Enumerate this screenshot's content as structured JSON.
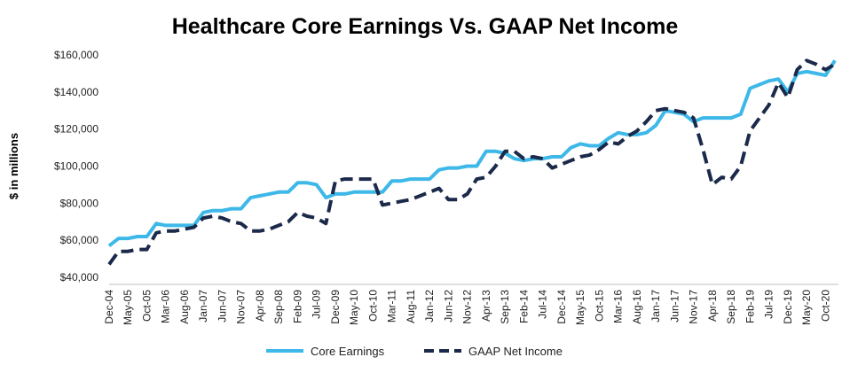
{
  "chart_data": {
    "type": "line",
    "title": "Healthcare Core Earnings Vs. GAAP Net Income",
    "xlabel": "",
    "ylabel": "$ in millions",
    "ylim": [
      40000,
      160000
    ],
    "yticks": [
      40000,
      60000,
      80000,
      100000,
      120000,
      140000,
      160000
    ],
    "ytick_labels": [
      "$40,000",
      "$60,000",
      "$80,000",
      "$100,000",
      "$120,000",
      "$140,000",
      "$160,000"
    ],
    "x": [
      "Dec-04",
      "Mar-05",
      "May-05",
      "Aug-05",
      "Oct-05",
      "Jan-06",
      "Mar-06",
      "Jun-06",
      "Aug-06",
      "Nov-06",
      "Jan-07",
      "Apr-07",
      "Jun-07",
      "Sep-07",
      "Nov-07",
      "Feb-08",
      "Apr-08",
      "Jul-08",
      "Sep-08",
      "Dec-08",
      "Feb-09",
      "May-09",
      "Jul-09",
      "Oct-09",
      "Dec-09",
      "Mar-10",
      "May-10",
      "Aug-10",
      "Oct-10",
      "Jan-11",
      "Mar-11",
      "Jun-11",
      "Aug-11",
      "Nov-11",
      "Jan-12",
      "Apr-12",
      "Jun-12",
      "Sep-12",
      "Nov-12",
      "Feb-13",
      "Apr-13",
      "Jul-13",
      "Sep-13",
      "Dec-13",
      "Feb-14",
      "May-14",
      "Jul-14",
      "Oct-14",
      "Dec-14",
      "Mar-15",
      "May-15",
      "Aug-15",
      "Oct-15",
      "Jan-16",
      "Mar-16",
      "Jun-16",
      "Aug-16",
      "Nov-16",
      "Jan-17",
      "Apr-17",
      "Jun-17",
      "Sep-17",
      "Nov-17",
      "Feb-18",
      "Apr-18",
      "Jul-18",
      "Sep-18",
      "Dec-18",
      "Feb-19",
      "May-19",
      "Jul-19",
      "Oct-19",
      "Dec-19",
      "Mar-20",
      "May-20",
      "Aug-20",
      "Oct-20",
      "Dec-20"
    ],
    "x_tick_labels": [
      "Dec-04",
      "May-05",
      "Oct-05",
      "Mar-06",
      "Aug-06",
      "Jan-07",
      "Jun-07",
      "Nov-07",
      "Apr-08",
      "Sep-08",
      "Feb-09",
      "Jul-09",
      "Dec-09",
      "May-10",
      "Oct-10",
      "Mar-11",
      "Aug-11",
      "Jan-12",
      "Jun-12",
      "Nov-12",
      "Apr-13",
      "Sep-13",
      "Feb-14",
      "Jul-14",
      "Dec-14",
      "May-15",
      "Oct-15",
      "Mar-16",
      "Aug-16",
      "Jan-17",
      "Jun-17",
      "Nov-17",
      "Apr-18",
      "Sep-18",
      "Feb-19",
      "Jul-19",
      "Dec-19",
      "May-20",
      "Oct-20"
    ],
    "series": [
      {
        "name": "Core Earnings",
        "color": "#3DB8E8",
        "style": "solid",
        "values": [
          57000,
          61000,
          61000,
          62000,
          62000,
          69000,
          68000,
          68000,
          68000,
          68000,
          75000,
          76000,
          76000,
          77000,
          77000,
          83000,
          84000,
          85000,
          86000,
          86000,
          91000,
          91000,
          90000,
          83000,
          85000,
          85000,
          86000,
          86000,
          86000,
          86000,
          92000,
          92000,
          93000,
          93000,
          93000,
          98000,
          99000,
          99000,
          100000,
          100000,
          108000,
          108000,
          107000,
          104000,
          103000,
          104000,
          104000,
          105000,
          105000,
          110000,
          112000,
          111000,
          111000,
          115000,
          118000,
          117000,
          117000,
          118000,
          122000,
          130000,
          129000,
          128000,
          124000,
          126000,
          126000,
          126000,
          126000,
          128000,
          142000,
          144000,
          146000,
          147000,
          140000,
          150000,
          151000,
          150000,
          149000,
          157000
        ]
      },
      {
        "name": "GAAP Net Income",
        "color": "#1B2A4A",
        "style": "dashed",
        "values": [
          47000,
          54000,
          54000,
          55000,
          55000,
          64000,
          65000,
          65000,
          66000,
          67000,
          72000,
          73000,
          72000,
          70000,
          69000,
          65000,
          65000,
          66000,
          68000,
          70000,
          75000,
          73000,
          72000,
          69000,
          92000,
          93000,
          93000,
          93000,
          93000,
          79000,
          80000,
          81000,
          82000,
          84000,
          86000,
          88000,
          82000,
          82000,
          85000,
          93000,
          94000,
          100000,
          108000,
          108000,
          104000,
          105000,
          104000,
          99000,
          101000,
          103000,
          105000,
          106000,
          109000,
          113000,
          112000,
          116000,
          119000,
          124000,
          130000,
          131000,
          130000,
          129000,
          126000,
          109000,
          90000,
          94000,
          93000,
          100000,
          119000,
          126000,
          133000,
          145000,
          137000,
          152000,
          157000,
          155000,
          152000,
          155000
        ]
      }
    ],
    "legend_position": "bottom-center",
    "grid": false
  }
}
